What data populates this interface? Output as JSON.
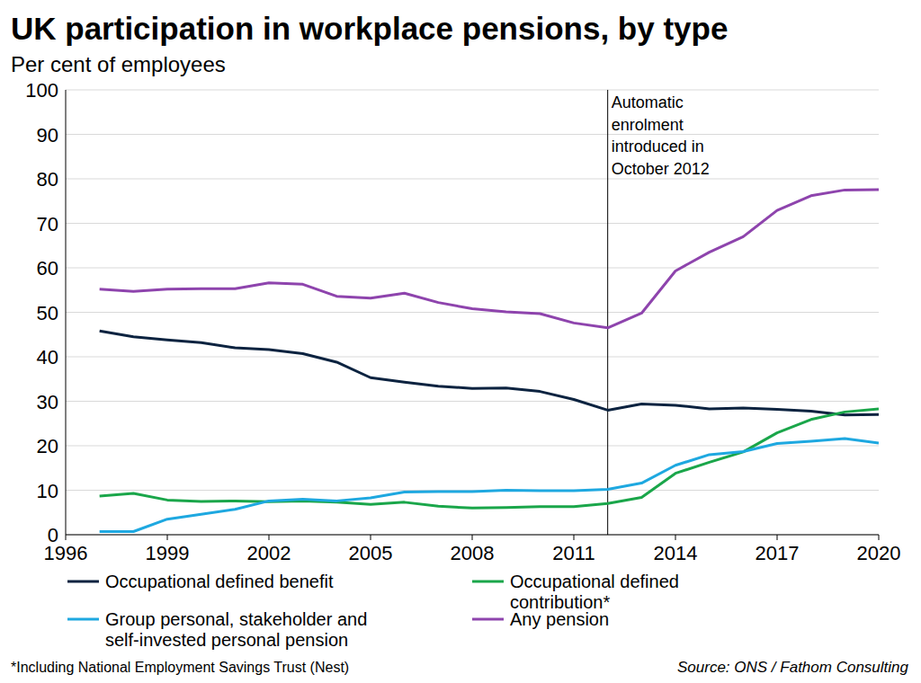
{
  "chart_data": {
    "type": "line",
    "title": "UK participation in workplace pensions, by type",
    "subtitle": "Per cent of employees",
    "x": [
      1997,
      1998,
      1999,
      2000,
      2001,
      2002,
      2003,
      2004,
      2005,
      2006,
      2007,
      2008,
      2009,
      2010,
      2011,
      2012,
      2013,
      2014,
      2015,
      2016,
      2017,
      2018,
      2019,
      2020
    ],
    "series": [
      {
        "name": "Occupational defined benefit",
        "color": "#0c2340",
        "values": [
          45.8,
          44.5,
          43.8,
          43.2,
          42.0,
          41.6,
          40.7,
          38.8,
          35.3,
          34.3,
          33.4,
          32.9,
          33.0,
          32.2,
          30.4,
          28.0,
          29.4,
          29.1,
          28.3,
          28.5,
          28.2,
          27.8,
          26.9,
          27.0
        ]
      },
      {
        "name": "Occupational defined contribution*",
        "color": "#1aa64a",
        "values": [
          8.7,
          9.3,
          7.8,
          7.5,
          7.6,
          7.4,
          7.6,
          7.3,
          6.8,
          7.3,
          6.4,
          6.0,
          6.1,
          6.3,
          6.3,
          7.0,
          8.4,
          13.8,
          16.3,
          18.6,
          22.9,
          25.9,
          27.6,
          28.3
        ]
      },
      {
        "name": "Group personal, stakeholder and self-invested personal pension",
        "color": "#1ea8e0",
        "values": [
          0.7,
          0.7,
          3.5,
          4.6,
          5.7,
          7.6,
          8.0,
          7.6,
          8.3,
          9.6,
          9.7,
          9.7,
          10.0,
          9.9,
          9.9,
          10.2,
          11.6,
          15.6,
          18.0,
          18.7,
          20.5,
          21.0,
          21.6,
          20.6
        ]
      },
      {
        "name": "Any pension",
        "color": "#8e44ad",
        "values": [
          55.2,
          54.7,
          55.2,
          55.3,
          55.3,
          56.6,
          56.3,
          53.6,
          53.2,
          54.3,
          52.2,
          50.8,
          50.1,
          49.7,
          47.6,
          46.5,
          49.8,
          59.3,
          63.5,
          67.0,
          72.9,
          76.2,
          77.5,
          77.6
        ]
      }
    ],
    "xlim": [
      1996,
      2020
    ],
    "xticks": [
      1996,
      1999,
      2002,
      2005,
      2008,
      2011,
      2014,
      2017,
      2020
    ],
    "ylim": [
      0,
      100
    ],
    "yticks": [
      0,
      10,
      20,
      30,
      40,
      50,
      60,
      70,
      80,
      90,
      100
    ],
    "grid": true,
    "legend": "bottom",
    "annotations": [
      {
        "x": 2012,
        "text": [
          "Automatic",
          "enrolment",
          "introduced in",
          "October 2012"
        ]
      }
    ],
    "footnote": "*Including National Employment Savings Trust (Nest)",
    "source": "Source: ONS / Fathom Consulting"
  }
}
